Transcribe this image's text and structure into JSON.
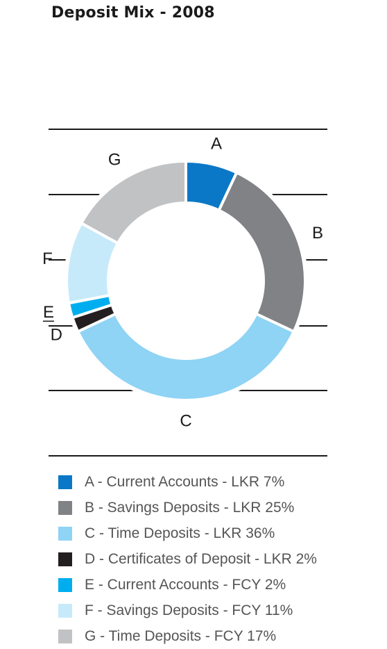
{
  "chart_data": {
    "type": "pie",
    "title": "Deposit Mix - 2008",
    "slices": [
      {
        "letter": "A",
        "legend": "A - Current Accounts - LKR  7%",
        "value": 7,
        "color": "#0a78c6"
      },
      {
        "letter": "B",
        "legend": "B - Savings Deposits - LKR  25%",
        "value": 25,
        "color": "#808285"
      },
      {
        "letter": "C",
        "legend": "C - Time Deposits - LKR  36%",
        "value": 36,
        "color": "#8fd3f5"
      },
      {
        "letter": "D",
        "legend": "D - Certificates of Deposit - LKR  2%",
        "value": 2,
        "color": "#231f20"
      },
      {
        "letter": "E",
        "legend": "E - Current Accounts - FCY  2%",
        "value": 2,
        "color": "#00aeef"
      },
      {
        "letter": "F",
        "legend": "F - Savings Deposits - FCY  11%",
        "value": 11,
        "color": "#c7eafb"
      },
      {
        "letter": "G",
        "legend": "G - Time Deposits - FCY  17%",
        "value": 17,
        "color": "#c1c2c4"
      }
    ],
    "legend_placement": "bottom"
  }
}
